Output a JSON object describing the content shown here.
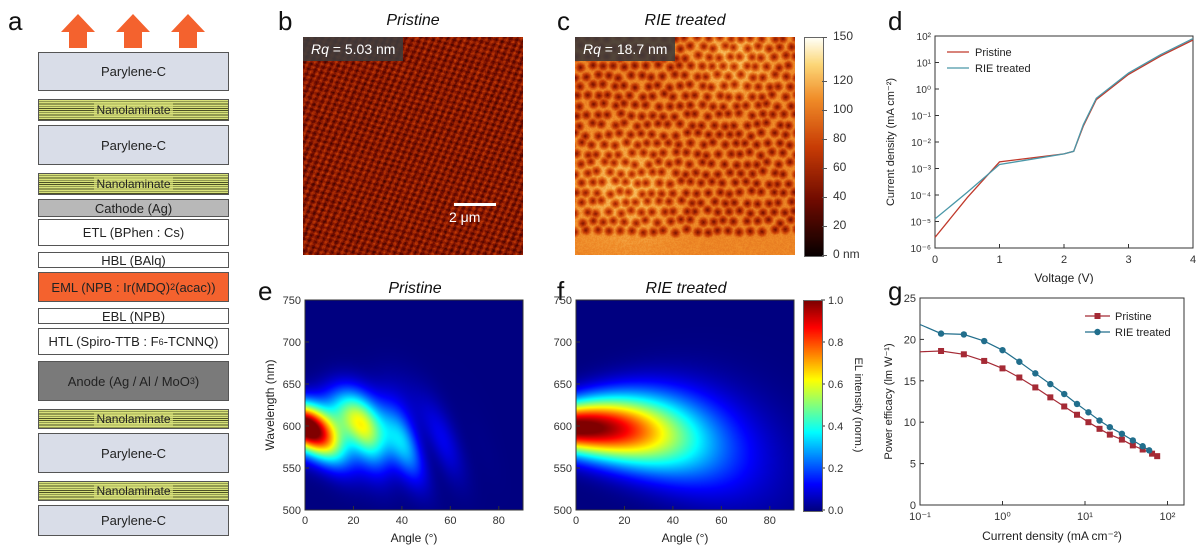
{
  "panel_letters": {
    "a": "a",
    "b": "b",
    "c": "c",
    "d": "d",
    "e": "e",
    "f": "f",
    "g": "g"
  },
  "stack": {
    "layers": [
      {
        "html": "Parylene-C",
        "color": "#d9dde8",
        "kind": "plain"
      },
      {
        "html": "Nanolaminate",
        "color": "#d8e27a",
        "kind": "nano"
      },
      {
        "html": "Parylene-C",
        "color": "#d9dde8",
        "kind": "plain"
      },
      {
        "html": "Nanolaminate",
        "color": "#d8e27a",
        "kind": "nano"
      },
      {
        "html": "Cathode (Ag)",
        "color": "#b8b8b8",
        "kind": "plain"
      },
      {
        "html": "ETL (BPhen : Cs)",
        "color": "#ffffff",
        "kind": "plain"
      },
      {
        "html": "HBL (BAlq)",
        "color": "#ffffff",
        "kind": "plain"
      },
      {
        "html": "EML (NPB : Ir(MDQ)<sub>2</sub>(acac))",
        "color": "#f4622e",
        "kind": "plain"
      },
      {
        "html": "EBL (NPB)",
        "color": "#ffffff",
        "kind": "plain"
      },
      {
        "html": "HTL (Spiro-TTB : F<sub>6</sub>-TCNNQ)",
        "color": "#ffffff",
        "kind": "plain"
      },
      {
        "html": "Anode (Ag / Al / MoO<sub>3</sub>)",
        "color": "#7a7a7a",
        "kind": "plain"
      },
      {
        "html": "Nanolaminate",
        "color": "#d8e27a",
        "kind": "nano"
      },
      {
        "html": "Parylene-C",
        "color": "#d9dde8",
        "kind": "plain"
      },
      {
        "html": "Nanolaminate",
        "color": "#d8e27a",
        "kind": "nano"
      },
      {
        "html": "Parylene-C",
        "color": "#d9dde8",
        "kind": "plain"
      }
    ],
    "arrow_color": "#f4622e"
  },
  "afm": {
    "pristine": {
      "title": "Pristine",
      "rq_label": "Rq",
      "rq_value": " = 5.03 nm",
      "scale_bar": "2 μm"
    },
    "rie": {
      "title": "RIE treated",
      "rq_label": "Rq",
      "rq_value": " = 18.7 nm"
    },
    "colorbar": {
      "ticks": [
        "150",
        "120",
        "100",
        "80",
        "60",
        "40",
        "20",
        "0 nm"
      ]
    }
  },
  "chart_data": [
    {
      "panel": "d",
      "type": "line",
      "xlabel": "Voltage (V)",
      "ylabel": "Current density (mA cm⁻²)",
      "xlim": [
        0,
        4
      ],
      "ylim": [
        -6,
        2
      ],
      "yscale": "log",
      "xticks": [
        "0",
        "1",
        "2",
        "3",
        "4"
      ],
      "yticks": [
        "10⁻⁶",
        "10⁻⁵",
        "10⁻⁴",
        "10⁻³",
        "10⁻²",
        "10⁻¹",
        "10⁰",
        "10¹",
        "10²"
      ],
      "legend": "top-left",
      "series": [
        {
          "name": "Pristine",
          "color": "#c0392b",
          "x": [
            0,
            0.5,
            1.0,
            1.5,
            2.0,
            2.15,
            2.3,
            2.5,
            3.0,
            3.5,
            4.0
          ],
          "y": [
            -5.6,
            -4.1,
            -2.75,
            -2.6,
            -2.45,
            -2.35,
            -1.4,
            -0.4,
            0.55,
            1.25,
            1.85
          ]
        },
        {
          "name": "RIE treated",
          "color": "#4a97a8",
          "x": [
            0,
            0.5,
            1.0,
            1.5,
            2.0,
            2.15,
            2.3,
            2.5,
            3.0,
            3.5,
            4.0
          ],
          "y": [
            -4.9,
            -3.9,
            -2.85,
            -2.65,
            -2.45,
            -2.35,
            -1.35,
            -0.35,
            0.6,
            1.3,
            1.9
          ]
        }
      ]
    },
    {
      "panel": "e",
      "type": "heatmap",
      "title": "Pristine",
      "xlabel": "Angle (°)",
      "ylabel": "Wavelength (nm)",
      "xlim": [
        0,
        90
      ],
      "ylim": [
        500,
        750
      ],
      "xticks": [
        "0",
        "20",
        "40",
        "60",
        "80"
      ],
      "yticks": [
        "500",
        "550",
        "600",
        "650",
        "700",
        "750"
      ],
      "peak_wavelength": 598,
      "angular_width": 22,
      "sideband_fringes": true
    },
    {
      "panel": "f",
      "type": "heatmap",
      "title": "RIE treated",
      "xlabel": "Angle (°)",
      "ylabel": "",
      "xlim": [
        0,
        90
      ],
      "ylim": [
        500,
        750
      ],
      "xticks": [
        "0",
        "20",
        "40",
        "60",
        "80"
      ],
      "yticks": [
        "500",
        "550",
        "600",
        "650",
        "700",
        "750"
      ],
      "peak_wavelength": 598,
      "angular_width": 35,
      "sideband_fringes": false,
      "colorbar": {
        "label": "EL intensity (norm.)",
        "ticks": [
          "1.0",
          "0.8",
          "0.6",
          "0.4",
          "0.2",
          "0.0"
        ]
      }
    },
    {
      "panel": "g",
      "type": "line",
      "xlabel": "Current density (mA cm⁻²)",
      "ylabel": "Power efficacy (lm W⁻¹)",
      "xscale": "log",
      "xlim": [
        -1,
        2.2
      ],
      "ylim": [
        0,
        25
      ],
      "xticks": [
        "10⁻¹",
        "10⁰",
        "10¹",
        "10²"
      ],
      "yticks": [
        "0",
        "5",
        "10",
        "15",
        "20",
        "25"
      ],
      "legend": "top-right",
      "series": [
        {
          "name": "Pristine",
          "color": "#a52a35",
          "marker": "square",
          "x": [
            0.18,
            0.34,
            0.6,
            1.0,
            1.6,
            2.5,
            3.8,
            5.6,
            8.0,
            11,
            15,
            20,
            28,
            38,
            50,
            65,
            75
          ],
          "y": [
            18.6,
            18.2,
            17.4,
            16.5,
            15.4,
            14.2,
            13.0,
            11.9,
            10.9,
            10.0,
            9.2,
            8.5,
            7.9,
            7.2,
            6.7,
            6.2,
            5.9
          ]
        },
        {
          "name": "RIE treated",
          "color": "#216e8c",
          "marker": "circle",
          "x": [
            0.18,
            0.34,
            0.6,
            1.0,
            1.6,
            2.5,
            3.8,
            5.6,
            8.0,
            11,
            15,
            20,
            28,
            38,
            50,
            60
          ],
          "y": [
            20.7,
            20.6,
            19.8,
            18.7,
            17.3,
            15.9,
            14.6,
            13.4,
            12.2,
            11.2,
            10.2,
            9.4,
            8.6,
            7.8,
            7.1,
            6.6
          ]
        }
      ],
      "pristine_line_start": {
        "x": 0.1,
        "y": 18.5
      },
      "rie_line_start": {
        "x": 0.1,
        "y": 21.8
      }
    }
  ]
}
